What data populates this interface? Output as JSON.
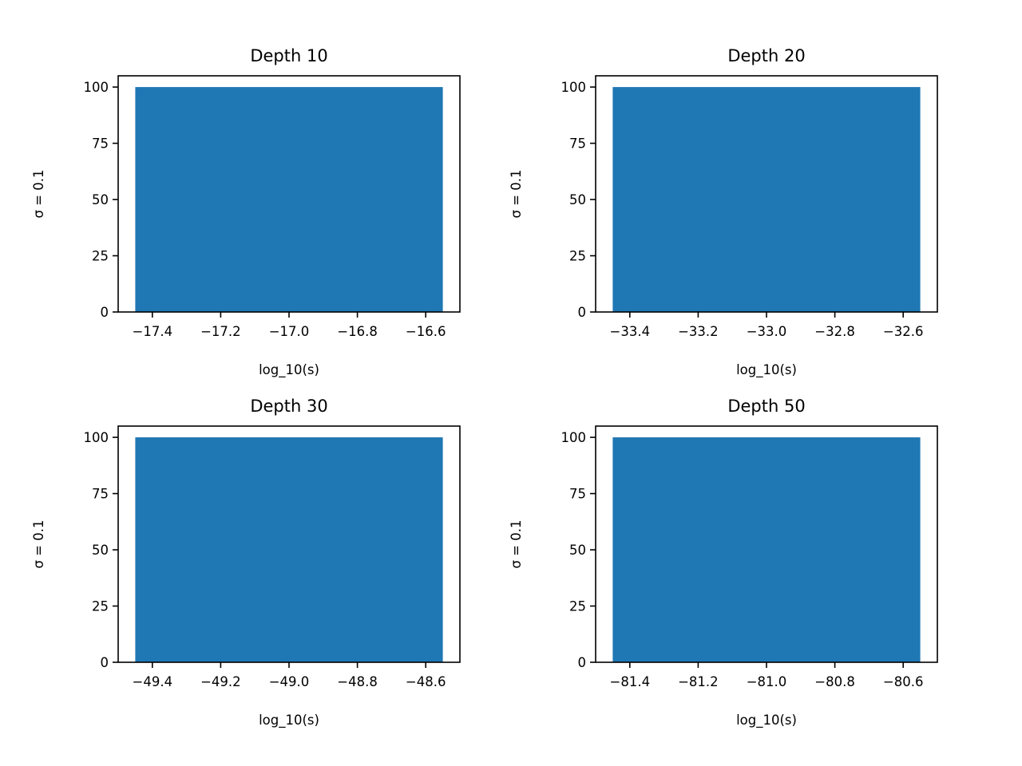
{
  "chart_data": [
    {
      "type": "bar",
      "title": "Depth 10",
      "xlabel": "log_10(s)",
      "ylabel": "σ = 0.1",
      "xlim": [
        -17.5,
        -16.5
      ],
      "ylim": [
        0,
        105
      ],
      "xticks": [
        -17.4,
        -17.2,
        -17.0,
        -16.8,
        -16.6
      ],
      "xtick_labels": [
        "−17.4",
        "−17.2",
        "−17.0",
        "−16.8",
        "−16.6"
      ],
      "yticks": [
        0,
        25,
        50,
        75,
        100
      ],
      "ytick_labels": [
        "0",
        "25",
        "50",
        "75",
        "100"
      ],
      "bars": [
        {
          "x0": -17.45,
          "x1": -16.55,
          "value": 100
        }
      ],
      "grid": false,
      "color": "#1f77b4"
    },
    {
      "type": "bar",
      "title": "Depth 20",
      "xlabel": "log_10(s)",
      "ylabel": "σ = 0.1",
      "xlim": [
        -33.5,
        -32.5
      ],
      "ylim": [
        0,
        105
      ],
      "xticks": [
        -33.4,
        -33.2,
        -33.0,
        -32.8,
        -32.6
      ],
      "xtick_labels": [
        "−33.4",
        "−33.2",
        "−33.0",
        "−32.8",
        "−32.6"
      ],
      "yticks": [
        0,
        25,
        50,
        75,
        100
      ],
      "ytick_labels": [
        "0",
        "25",
        "50",
        "75",
        "100"
      ],
      "bars": [
        {
          "x0": -33.45,
          "x1": -32.55,
          "value": 100
        }
      ],
      "grid": false,
      "color": "#1f77b4"
    },
    {
      "type": "bar",
      "title": "Depth 30",
      "xlabel": "log_10(s)",
      "ylabel": "σ = 0.1",
      "xlim": [
        -49.5,
        -48.5
      ],
      "ylim": [
        0,
        105
      ],
      "xticks": [
        -49.4,
        -49.2,
        -49.0,
        -48.8,
        -48.6
      ],
      "xtick_labels": [
        "−49.4",
        "−49.2",
        "−49.0",
        "−48.8",
        "−48.6"
      ],
      "yticks": [
        0,
        25,
        50,
        75,
        100
      ],
      "ytick_labels": [
        "0",
        "25",
        "50",
        "75",
        "100"
      ],
      "bars": [
        {
          "x0": -49.45,
          "x1": -48.55,
          "value": 100
        }
      ],
      "grid": false,
      "color": "#1f77b4"
    },
    {
      "type": "bar",
      "title": "Depth 50",
      "xlabel": "log_10(s)",
      "ylabel": "σ = 0.1",
      "xlim": [
        -81.5,
        -80.5
      ],
      "ylim": [
        0,
        105
      ],
      "xticks": [
        -81.4,
        -81.2,
        -81.0,
        -80.8,
        -80.6
      ],
      "xtick_labels": [
        "−81.4",
        "−81.2",
        "−81.0",
        "−80.8",
        "−80.6"
      ],
      "yticks": [
        0,
        25,
        50,
        75,
        100
      ],
      "ytick_labels": [
        "0",
        "25",
        "50",
        "75",
        "100"
      ],
      "bars": [
        {
          "x0": -81.45,
          "x1": -80.55,
          "value": 100
        }
      ],
      "grid": false,
      "color": "#1f77b4"
    }
  ]
}
